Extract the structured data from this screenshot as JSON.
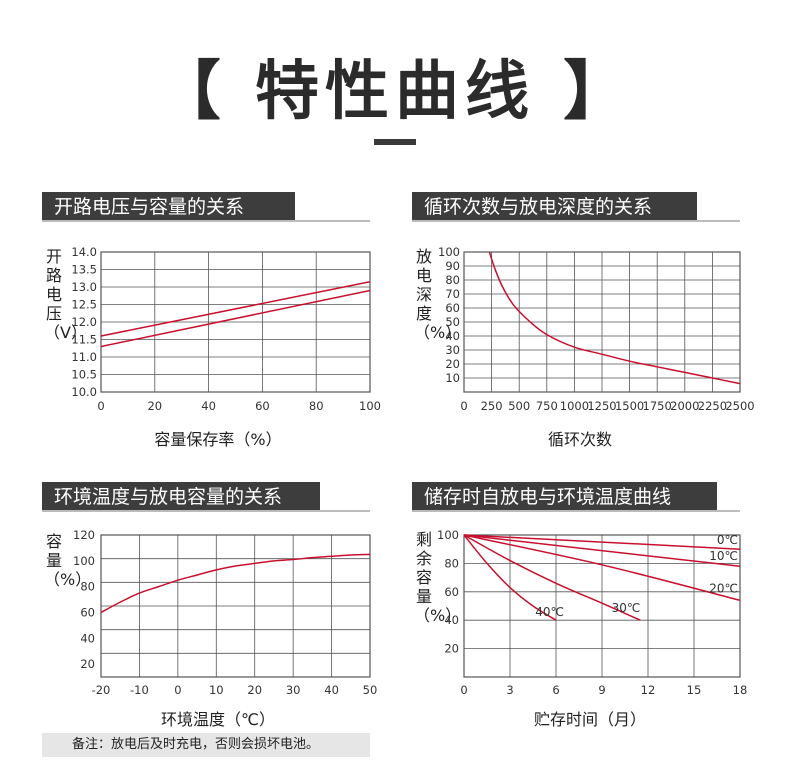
{
  "title": "【 特性曲线 】",
  "note": "备注：放电后及时充电，否则会损坏电池。",
  "colors": {
    "curve": "#c8102e",
    "grid": "#555555",
    "header_bg": "#3d3d3d"
  },
  "chart_data": [
    {
      "type": "line",
      "title": "开路电压与容量的关系",
      "xlabel": "容量保存率（%）",
      "ylabel": "开路电压（V）",
      "xlim": [
        0,
        100
      ],
      "ylim": [
        10.0,
        14.0
      ],
      "xticks": [
        "0",
        "20",
        "40",
        "60",
        "80",
        "100"
      ],
      "yticks": [
        "10.0",
        "10.5",
        "11.0",
        "11.5",
        "12.0",
        "12.5",
        "13.0",
        "13.5",
        "14.0"
      ],
      "series": [
        {
          "x": [
            0,
            100
          ],
          "y": [
            11.6,
            13.15
          ]
        },
        {
          "x": [
            0,
            100
          ],
          "y": [
            11.3,
            12.9
          ]
        }
      ]
    },
    {
      "type": "line",
      "title": "循环次数与放电深度的关系",
      "xlabel": "循环次数",
      "ylabel": "放电深度（%）",
      "xlim": [
        0,
        2500
      ],
      "ylim": [
        0,
        100
      ],
      "xticks": [
        "0",
        "250",
        "500",
        "750",
        "1000",
        "1250",
        "1500",
        "1750",
        "2000",
        "2250",
        "2500"
      ],
      "yticks": [
        "10",
        "20",
        "30",
        "40",
        "50",
        "60",
        "70",
        "80",
        "90",
        "100"
      ],
      "series": [
        {
          "x": [
            230,
            280,
            350,
            450,
            600,
            750,
            1000,
            1250,
            1500,
            1750,
            2000,
            2250,
            2500
          ],
          "y": [
            100,
            88,
            75,
            62,
            50,
            41,
            32,
            27,
            22,
            18,
            14,
            10,
            6
          ]
        }
      ]
    },
    {
      "type": "line",
      "title": "环境温度与放电容量的关系",
      "xlabel": "环境温度（℃）",
      "ylabel": "容量（%）",
      "xlim": [
        -20,
        50
      ],
      "ylim": [
        10,
        120
      ],
      "xticks": [
        "-20",
        "-10",
        "0",
        "10",
        "20",
        "30",
        "40",
        "50"
      ],
      "yticks": [
        "20",
        "40",
        "60",
        "80",
        "100",
        "120"
      ],
      "series": [
        {
          "x": [
            -20,
            -15,
            -10,
            -5,
            0,
            5,
            10,
            15,
            20,
            25,
            30,
            35,
            40,
            45,
            50
          ],
          "y": [
            60,
            68,
            75,
            80,
            85,
            89,
            93,
            96,
            98,
            100,
            101,
            102.5,
            103.5,
            104.5,
            105
          ]
        }
      ]
    },
    {
      "type": "line",
      "title": "储存时自放电与环境温度曲线",
      "xlabel": "贮存时间（月）",
      "ylabel": "剩余容量（%）",
      "xlim": [
        0,
        18
      ],
      "ylim": [
        0,
        100
      ],
      "xticks": [
        "0",
        "3",
        "6",
        "9",
        "12",
        "15",
        "18"
      ],
      "yticks": [
        "20",
        "40",
        "60",
        "80",
        "100"
      ],
      "series": [
        {
          "name": "0℃",
          "x": [
            0,
            18
          ],
          "y": [
            100,
            90
          ]
        },
        {
          "name": "10℃",
          "x": [
            0,
            18
          ],
          "y": [
            100,
            78
          ]
        },
        {
          "name": "20℃",
          "x": [
            0,
            9,
            18
          ],
          "y": [
            100,
            79,
            54
          ]
        },
        {
          "name": "30℃",
          "x": [
            0,
            3,
            6,
            9,
            11.5
          ],
          "y": [
            100,
            82,
            66,
            52,
            40
          ]
        },
        {
          "name": "40℃",
          "x": [
            0,
            1.5,
            3,
            4.5,
            6
          ],
          "y": [
            100,
            80,
            63,
            50,
            40
          ]
        }
      ]
    }
  ]
}
